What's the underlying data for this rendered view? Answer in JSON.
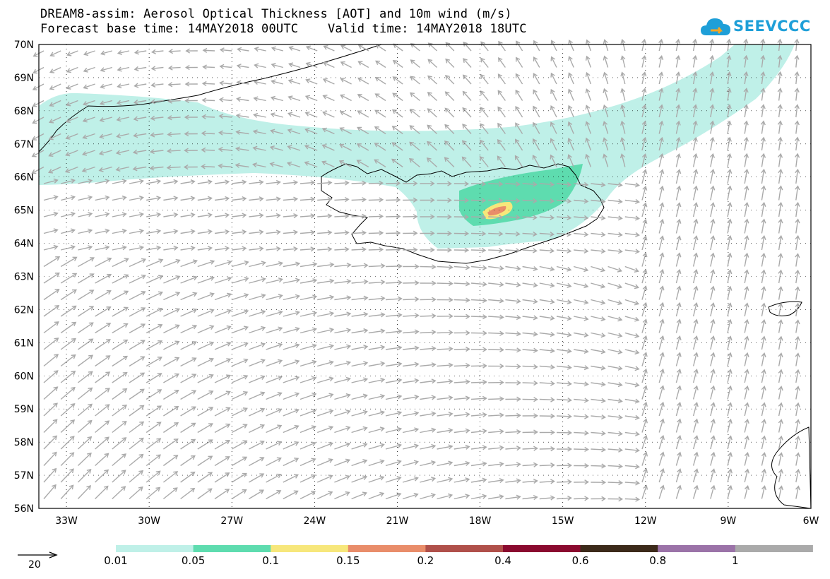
{
  "title": {
    "line1": "DREAM8-assim: Aerosol Optical Thickness [AOT] and 10m wind (m/s)",
    "line2": "Forecast base time: 14MAY2018 00UTC    Valid time: 14MAY2018 18UTC"
  },
  "logo": {
    "text": "SEEVCCC",
    "color": "#1e9fd8"
  },
  "map": {
    "lat_range": [
      56,
      70
    ],
    "lon_range": [
      -34,
      -6
    ],
    "lat_labels": [
      "70N",
      "69N",
      "68N",
      "67N",
      "66N",
      "65N",
      "64N",
      "63N",
      "62N",
      "61N",
      "60N",
      "59N",
      "58N",
      "57N",
      "56N"
    ],
    "lon_labels": [
      "33W",
      "30W",
      "27W",
      "24W",
      "21W",
      "18W",
      "15W",
      "12W",
      "9W",
      "6W"
    ],
    "wind_arrow_color": "#aaaaaa",
    "coastline_color": "#000000"
  },
  "colorbar": {
    "colors": [
      "#bff0e8",
      "#5edcaf",
      "#f7e77b",
      "#e98d6a",
      "#b0504a",
      "#8a0a2f",
      "#3c2a1a",
      "#9b73a8",
      "#aaaaaa"
    ],
    "labels": [
      "0.01",
      "0.05",
      "0.1",
      "0.15",
      "0.2",
      "0.4",
      "0.6",
      "0.8",
      "1"
    ]
  },
  "reference_vector": {
    "label": "20"
  }
}
